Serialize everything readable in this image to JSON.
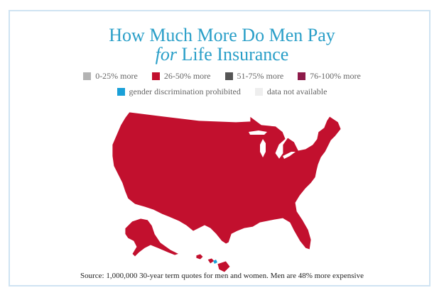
{
  "title": {
    "line1": "How Much More Do Men Pay",
    "line2_emphasis": "for",
    "line2_rest": " Life Insurance"
  },
  "legend": {
    "row1": [
      {
        "label": "0-25% more",
        "color": "#b3b3b3"
      },
      {
        "label": "26-50% more",
        "color": "#c2102e"
      },
      {
        "label": "51-75% more",
        "color": "#555555"
      },
      {
        "label": "76-100% more",
        "color": "#8e1b4a"
      }
    ],
    "row2": [
      {
        "label": "gender discrimination prohibited",
        "color": "#1aa0d8"
      },
      {
        "label": "data not available",
        "color": "#eeeeee"
      }
    ]
  },
  "map": {
    "fill_color": "#c2102e",
    "stroke_color": "#ffffff",
    "category": "26-50% more"
  },
  "source": {
    "text": "Source:  1,000,000 30-year term quotes for men and women.  Men are 48% more expensive"
  }
}
